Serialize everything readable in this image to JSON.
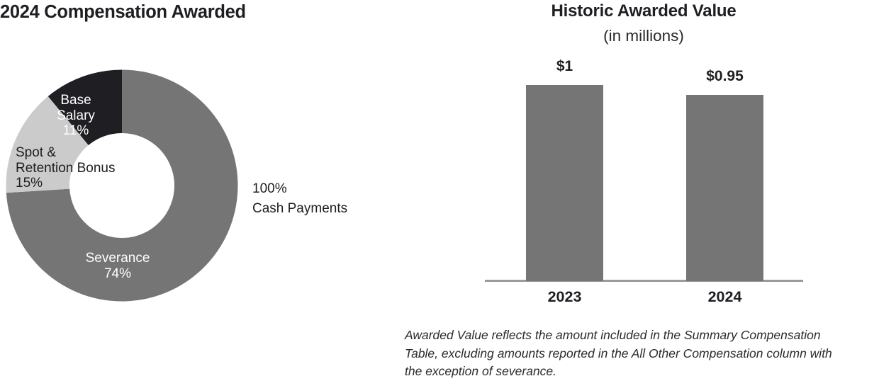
{
  "chart_data": [
    {
      "type": "pie",
      "variant": "donut",
      "title": "2024 Compensation Awarded",
      "start_angle_deg": 0,
      "direction": "clockwise",
      "slices": [
        {
          "label": "Severance",
          "value": 74,
          "color": "#757575",
          "text_color": "#ffffff",
          "lines": [
            "Severance",
            "74%"
          ]
        },
        {
          "label": "Spot & Retention Bonus",
          "value": 15,
          "color": "#cbcbcb",
          "text_color": "#1e1e23",
          "lines": [
            "Spot &",
            "Retention Bonus",
            "15%"
          ]
        },
        {
          "label": "Base Salary",
          "value": 11,
          "color": "#1e1e23",
          "text_color": "#ffffff",
          "lines": [
            "Base",
            "Salary",
            "11%"
          ]
        }
      ],
      "annotation": {
        "lines": [
          "100%",
          "Cash Payments"
        ]
      }
    },
    {
      "type": "bar",
      "title": "Historic Awarded Value",
      "subtitle": "(in millions)",
      "categories": [
        "2023",
        "2024"
      ],
      "values": [
        1,
        0.95
      ],
      "value_labels": [
        "$1",
        "$0.95"
      ],
      "bar_color": "#757575",
      "axis_color": "#9b9b9b",
      "ylim": [
        0,
        1.1
      ],
      "grid": false,
      "legend": false,
      "footnote": "Awarded Value reflects the amount included in the Summary Compensation Table, excluding amounts reported in the All Other Compensation column with the exception of severance.",
      "footnote_lines": [
        "Awarded Value reflects the amount included in the Summary Compensation",
        "Table, excluding amounts reported in the All Other Compensation column with",
        "the exception of severance."
      ]
    }
  ]
}
